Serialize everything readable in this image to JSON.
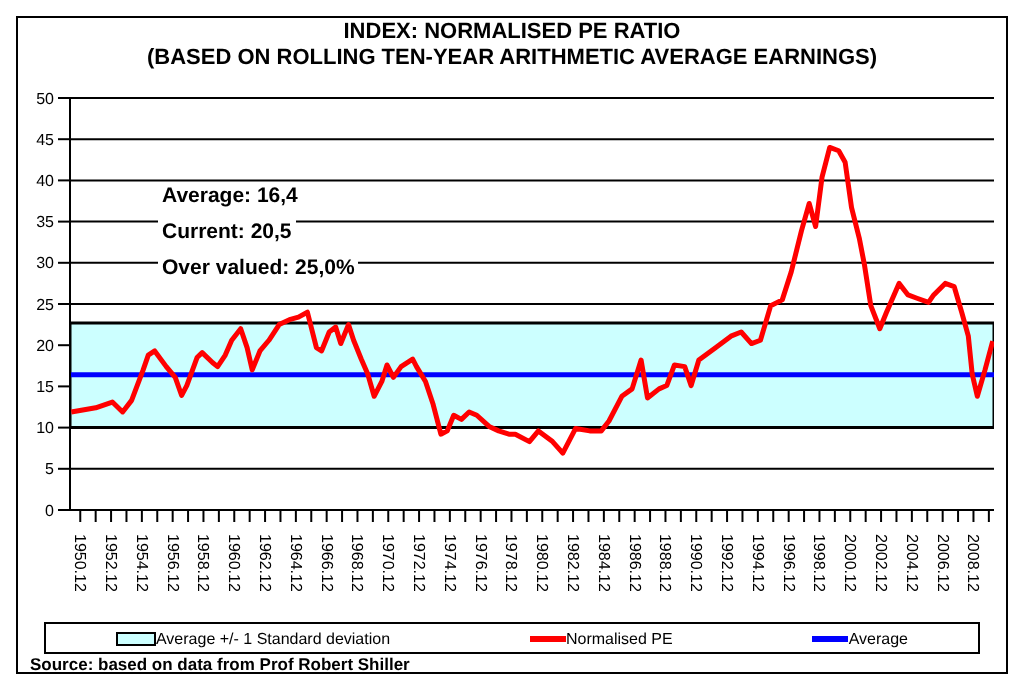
{
  "chart_data": {
    "type": "line",
    "title": "INDEX: NORMALISED PE RATIO",
    "subtitle": "(BASED ON ROLLING TEN-YEAR ARITHMETIC AVERAGE EARNINGS)",
    "annotations": [
      "Average: 16,4",
      "Current:  20,5",
      "Over valued: 25,0%",
      "Source: based on data from Prof Robert Shiller"
    ],
    "x": [
      "1950-05",
      "1951-12",
      "1953-01",
      "1953-09",
      "1954-04",
      "1955-01",
      "1955-05",
      "1955-10",
      "1956-07",
      "1957-02",
      "1957-07",
      "1957-11",
      "1958-07",
      "1958-11",
      "1959-07",
      "1959-11",
      "1960-05",
      "1960-10",
      "1961-05",
      "1961-10",
      "1962-02",
      "1962-08",
      "1963-03",
      "1963-11",
      "1964-07",
      "1965-02",
      "1965-09",
      "1966-04",
      "1966-08",
      "1967-02",
      "1967-07",
      "1967-11",
      "1968-05",
      "1968-09",
      "1969-03",
      "1969-08",
      "1970-01",
      "1970-07",
      "1970-11",
      "1971-04",
      "1971-10",
      "1972-07",
      "1972-10",
      "1973-05",
      "1973-11",
      "1974-05",
      "1974-10",
      "1975-03",
      "1975-09",
      "1976-03",
      "1976-09",
      "1977-07",
      "1978-02",
      "1978-10",
      "1979-03",
      "1980-02",
      "1980-09",
      "1981-08",
      "1982-04",
      "1983-02",
      "1984-01",
      "1984-10",
      "1985-04",
      "1986-02",
      "1986-10",
      "1987-05",
      "1987-10",
      "1988-07",
      "1989-01",
      "1989-07",
      "1990-03",
      "1990-08",
      "1991-02",
      "1992-03",
      "1993-03",
      "1993-11",
      "1994-07",
      "1995-02",
      "1995-10",
      "1996-07",
      "1997-02",
      "1997-10",
      "1998-04",
      "1998-09",
      "1999-02",
      "1999-08",
      "2000-03",
      "2000-08",
      "2001-01",
      "2001-07",
      "2001-11",
      "2002-04",
      "2002-11",
      "2003-04",
      "2004-02",
      "2004-09",
      "2005-04",
      "2006-01",
      "2006-05",
      "2007-02",
      "2007-09",
      "2008-03",
      "2008-08",
      "2008-11",
      "2009-03",
      "2009-09",
      "2010-03"
    ],
    "series": [
      {
        "name": "Normalised PE",
        "color": "#ff0000",
        "values": [
          11.9,
          12.4,
          13.1,
          11.9,
          13.3,
          17.0,
          18.8,
          19.3,
          17.4,
          16.1,
          13.9,
          15.1,
          18.5,
          19.1,
          17.9,
          17.4,
          18.8,
          20.6,
          22.0,
          19.7,
          17.0,
          19.3,
          20.6,
          22.5,
          23.1,
          23.4,
          24.0,
          19.7,
          19.3,
          21.6,
          22.2,
          20.2,
          22.5,
          20.6,
          18.3,
          16.5,
          13.8,
          15.6,
          17.6,
          16.1,
          17.4,
          18.3,
          17.4,
          15.6,
          12.8,
          9.2,
          9.6,
          11.5,
          11.0,
          11.9,
          11.5,
          10.1,
          9.6,
          9.2,
          9.2,
          8.3,
          9.6,
          8.3,
          6.9,
          9.9,
          9.6,
          9.6,
          10.8,
          13.8,
          14.7,
          18.2,
          13.6,
          14.7,
          15.1,
          17.6,
          17.4,
          15.1,
          18.2,
          19.7,
          21.1,
          21.6,
          20.2,
          20.6,
          24.8,
          25.5,
          28.9,
          33.9,
          37.2,
          34.4,
          40.4,
          44.0,
          43.6,
          42.2,
          36.7,
          33.0,
          29.8,
          24.8,
          22.0,
          23.9,
          27.5,
          26.1,
          25.7,
          25.2,
          26.1,
          27.5,
          27.1,
          23.9,
          21.1,
          16.5,
          13.8,
          17.0,
          20.5
        ]
      }
    ],
    "xlim": [
      "1950-04",
      "2010-04"
    ],
    "xticks": [
      {
        "value": "1950-12",
        "label": "1950.12"
      },
      {
        "value": "1951-12",
        "label": null
      },
      {
        "value": "1952-12",
        "label": "1952.12"
      },
      {
        "value": "1953-12",
        "label": null
      },
      {
        "value": "1954-12",
        "label": "1954.12"
      },
      {
        "value": "1955-12",
        "label": null
      },
      {
        "value": "1956-12",
        "label": "1956.12"
      },
      {
        "value": "1957-12",
        "label": null
      },
      {
        "value": "1958-12",
        "label": "1958.12"
      },
      {
        "value": "1959-12",
        "label": null
      },
      {
        "value": "1960-12",
        "label": "1960.12"
      },
      {
        "value": "1961-12",
        "label": null
      },
      {
        "value": "1962-12",
        "label": "1962.12"
      },
      {
        "value": "1963-12",
        "label": null
      },
      {
        "value": "1964-12",
        "label": "1964.12"
      },
      {
        "value": "1965-12",
        "label": null
      },
      {
        "value": "1966-12",
        "label": "1966.12"
      },
      {
        "value": "1967-12",
        "label": null
      },
      {
        "value": "1968-12",
        "label": "1968.12"
      },
      {
        "value": "1969-12",
        "label": null
      },
      {
        "value": "1970-12",
        "label": "1970.12"
      },
      {
        "value": "1971-12",
        "label": null
      },
      {
        "value": "1972-12",
        "label": "1972.12"
      },
      {
        "value": "1973-12",
        "label": null
      },
      {
        "value": "1974-12",
        "label": "1974.12"
      },
      {
        "value": "1975-12",
        "label": null
      },
      {
        "value": "1976-12",
        "label": "1976.12"
      },
      {
        "value": "1977-12",
        "label": null
      },
      {
        "value": "1978-12",
        "label": "1978.12"
      },
      {
        "value": "1979-12",
        "label": null
      },
      {
        "value": "1980-12",
        "label": "1980.12"
      },
      {
        "value": "1981-12",
        "label": null
      },
      {
        "value": "1982-12",
        "label": "1982.12"
      },
      {
        "value": "1983-12",
        "label": null
      },
      {
        "value": "1984-12",
        "label": "1984.12"
      },
      {
        "value": "1985-12",
        "label": null
      },
      {
        "value": "1986-12",
        "label": "1986.12"
      },
      {
        "value": "1987-12",
        "label": null
      },
      {
        "value": "1988-12",
        "label": "1988.12"
      },
      {
        "value": "1989-12",
        "label": null
      },
      {
        "value": "1990-12",
        "label": "1990.12"
      },
      {
        "value": "1991-12",
        "label": null
      },
      {
        "value": "1992-12",
        "label": "1992.12"
      },
      {
        "value": "1993-12",
        "label": null
      },
      {
        "value": "1994-12",
        "label": "1994.12"
      },
      {
        "value": "1995-12",
        "label": null
      },
      {
        "value": "1996-12",
        "label": "1996.12"
      },
      {
        "value": "1997-12",
        "label": null
      },
      {
        "value": "1998-12",
        "label": "1998.12"
      },
      {
        "value": "1999-12",
        "label": null
      },
      {
        "value": "2000-12",
        "label": "2000.12"
      },
      {
        "value": "2001-12",
        "label": null
      },
      {
        "value": "2002-12",
        "label": "2002.12"
      },
      {
        "value": "2003-12",
        "label": null
      },
      {
        "value": "2004-12",
        "label": "2004.12"
      },
      {
        "value": "2005-12",
        "label": null
      },
      {
        "value": "2006-12",
        "label": "2006.12"
      },
      {
        "value": "2007-12",
        "label": null
      },
      {
        "value": "2008-12",
        "label": "2008.12"
      },
      {
        "value": "2009-12",
        "label": null
      }
    ],
    "ylim": [
      0,
      50
    ],
    "yticks": [
      0,
      5,
      10,
      15,
      20,
      25,
      30,
      35,
      40,
      45,
      50
    ],
    "bands": [
      {
        "axis": "y",
        "from": 10,
        "to": 22.7,
        "label": "Average +/- 1 Standard deviation",
        "color": "#ccffff"
      }
    ],
    "ref_lines": [
      {
        "axis": "y",
        "value": 16.4,
        "label": "Average",
        "color": "#0000ff"
      }
    ],
    "grid": "y",
    "legend": "bottom",
    "marker": "none",
    "line_style": "solid"
  }
}
